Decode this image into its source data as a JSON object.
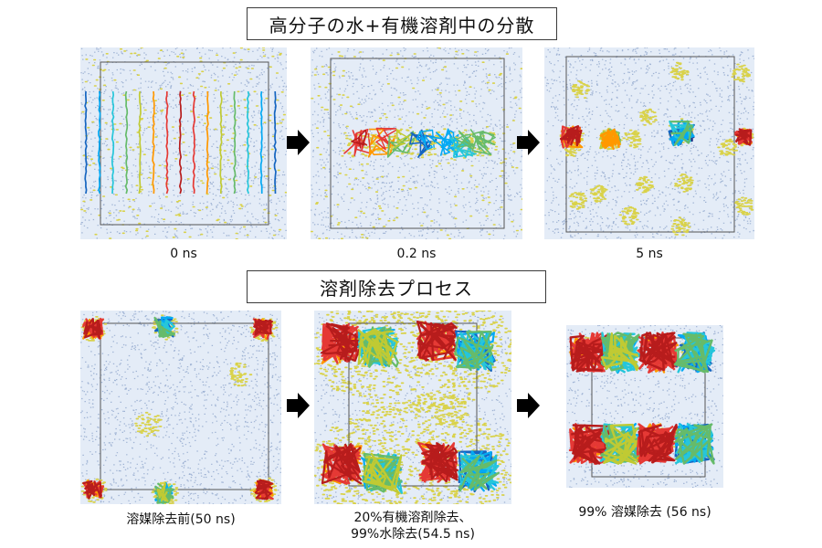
{
  "sections": {
    "top_title": "高分子の水+有機溶剤中の分散",
    "bottom_title": "溶剤除去プロセス"
  },
  "panels": [
    {
      "id": "p1",
      "caption": "0 ns",
      "scene": "initial-chains"
    },
    {
      "id": "p2",
      "caption": "0.2 ns",
      "scene": "coiling-chains"
    },
    {
      "id": "p3",
      "caption": "5 ns",
      "scene": "dispersed-globules"
    },
    {
      "id": "p4",
      "caption": "溶媒除去前(50 ns)",
      "scene": "before-removal"
    },
    {
      "id": "p5",
      "caption_line1": "20%有機溶剤除去、",
      "caption_line2": "99%水除去(54.5 ns)",
      "scene": "partial-removal"
    },
    {
      "id": "p6",
      "caption": "99% 溶媒除去 (56 ns)",
      "scene": "final-film"
    }
  ],
  "colors": {
    "water": "#c9d6ea",
    "solvent": "#d9d24a",
    "box": "#555555",
    "chain_gradient": [
      "#1a237e",
      "#1565c0",
      "#03a9f4",
      "#26c6da",
      "#66bb6a",
      "#c0ca33",
      "#ff9800",
      "#e53935",
      "#b71c1c"
    ]
  },
  "arrows": [
    "arrow-right-icon",
    "arrow-right-icon",
    "arrow-right-icon",
    "arrow-right-icon"
  ]
}
